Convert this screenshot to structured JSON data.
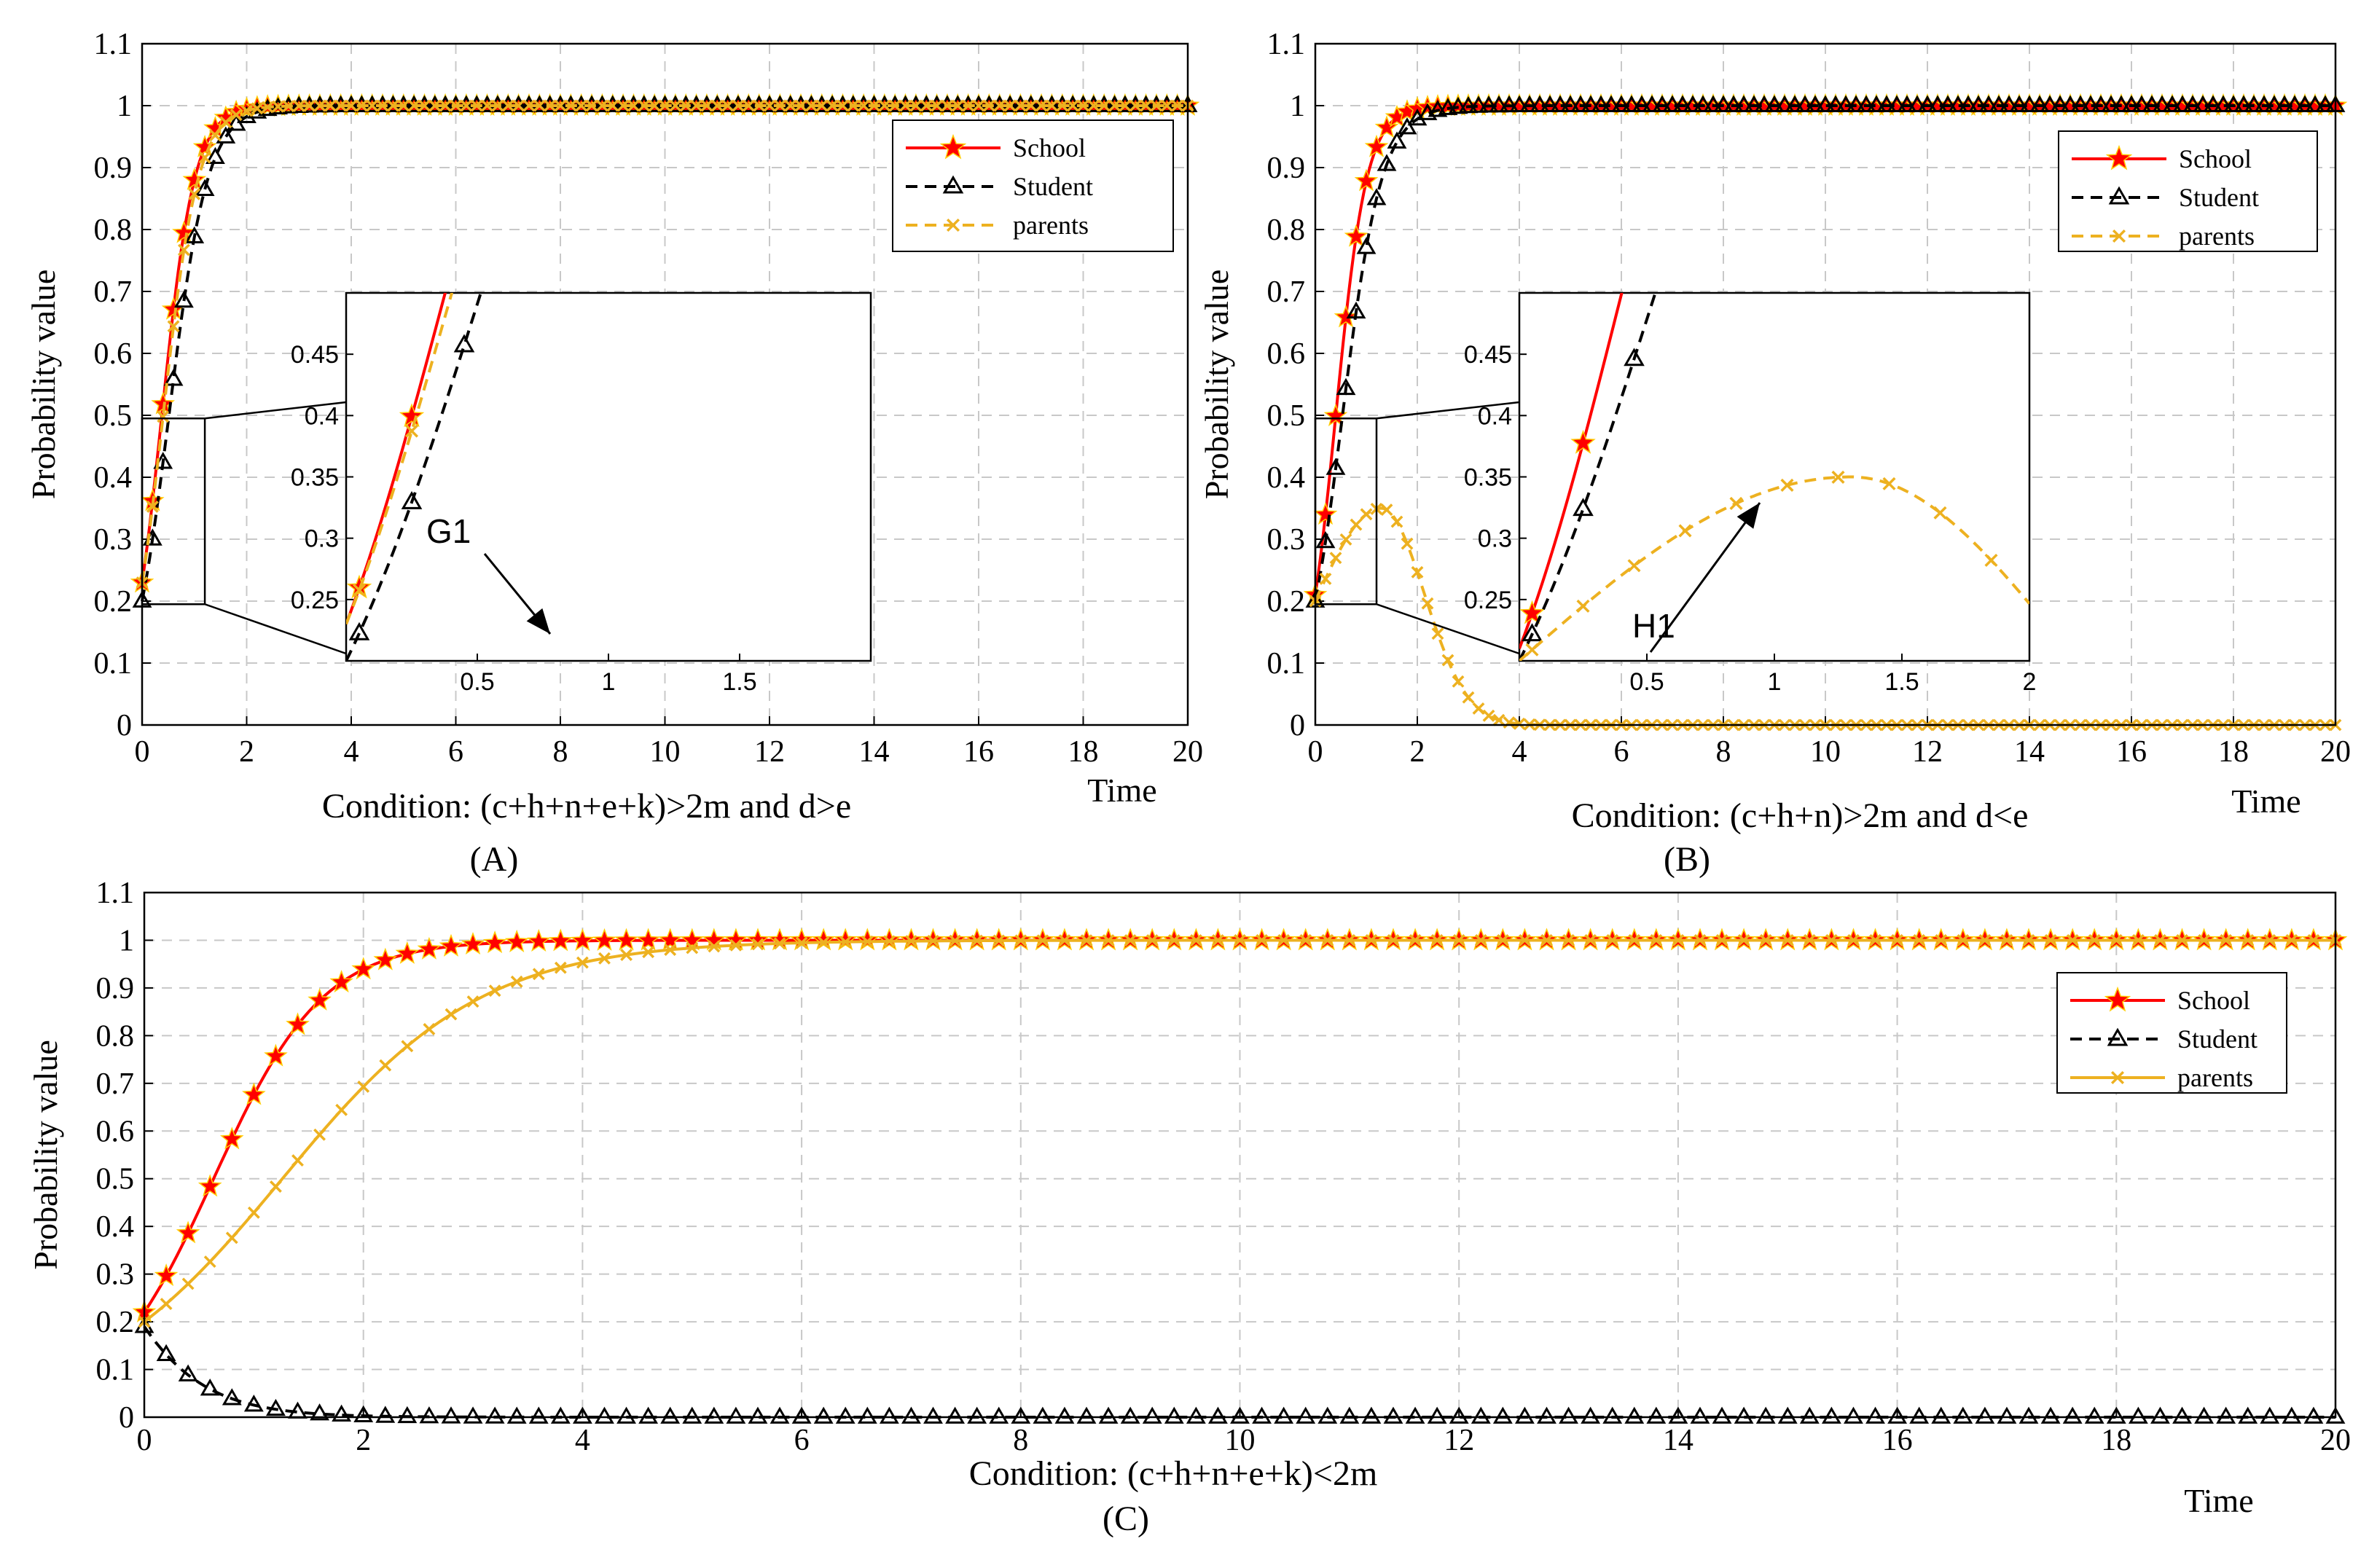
{
  "chart_data": [
    {
      "type": "line",
      "panel_label": "(A)",
      "condition": "Condition: (c+h+n+e+k)>2m and d>e",
      "xlabel": "Time",
      "ylabel": "Probability value",
      "xlim": [
        0,
        20
      ],
      "ylim": [
        0,
        1.1
      ],
      "xticks": [
        "0",
        "2",
        "4",
        "6",
        "8",
        "10",
        "12",
        "14",
        "16",
        "18",
        "20"
      ],
      "yticks": [
        "0",
        "0.1",
        "0.2",
        "0.3",
        "0.4",
        "0.5",
        "0.6",
        "0.7",
        "0.8",
        "0.9",
        "1",
        "1.1"
      ],
      "grid": true,
      "legend_position": "upper-right",
      "series": [
        {
          "name": "School",
          "color": "#ff0000",
          "marker": "star",
          "line": "solid",
          "model": {
            "kind": "logistic",
            "p0": 0.23,
            "k": 3.2
          }
        },
        {
          "name": "Student",
          "color": "#000000",
          "marker": "triangle",
          "line": "dashed",
          "model": {
            "kind": "logistic",
            "p0": 0.2,
            "k": 2.7
          }
        },
        {
          "name": "parents",
          "color": "#edb120",
          "marker": "x",
          "line": "dashed",
          "model": {
            "kind": "logistic",
            "p0": 0.23,
            "k": 3.0
          }
        }
      ],
      "inset": {
        "xlim": [
          0,
          2
        ],
        "ylim": [
          0.2,
          0.5
        ],
        "xticks": [
          "0.5",
          "1",
          "1.5"
        ],
        "yticks": [
          "0.25",
          "0.3",
          "0.35",
          "0.4",
          "0.45"
        ],
        "annotation": "G1"
      }
    },
    {
      "type": "line",
      "panel_label": "(B)",
      "condition": "Condition: (c+h+n)>2m and d<e",
      "xlabel": "Time",
      "ylabel": "Probability value",
      "xlim": [
        0,
        20
      ],
      "ylim": [
        0,
        1.1
      ],
      "xticks": [
        "0",
        "2",
        "4",
        "6",
        "8",
        "10",
        "12",
        "14",
        "16",
        "18",
        "20"
      ],
      "yticks": [
        "0",
        "0.1",
        "0.2",
        "0.3",
        "0.4",
        "0.5",
        "0.6",
        "0.7",
        "0.8",
        "0.9",
        "1",
        "1.1"
      ],
      "grid": true,
      "legend_position": "upper-right",
      "series": [
        {
          "name": "School",
          "color": "#ff0000",
          "marker": "star",
          "line": "solid",
          "model": {
            "kind": "logistic",
            "p0": 0.21,
            "k": 3.3
          }
        },
        {
          "name": "Student",
          "color": "#000000",
          "marker": "triangle",
          "line": "dashed",
          "model": {
            "kind": "logistic",
            "p0": 0.2,
            "k": 2.6
          }
        },
        {
          "name": "parents",
          "color": "#edb120",
          "marker": "x",
          "line": "dashed",
          "model": {
            "kind": "hump",
            "p0": 0.2,
            "peak": 0.35,
            "peak_t": 1.3,
            "decay": 1.4
          }
        }
      ],
      "inset": {
        "xlim": [
          0,
          2
        ],
        "ylim": [
          0.2,
          0.5
        ],
        "xticks": [
          "0.5",
          "1",
          "1.5",
          "2"
        ],
        "yticks": [
          "0.25",
          "0.3",
          "0.35",
          "0.4",
          "0.45"
        ],
        "annotation": "H1"
      }
    },
    {
      "type": "line",
      "panel_label": "(C)",
      "condition": "Condition: (c+h+n+e+k)<2m",
      "xlabel": "Time",
      "ylabel": "Probability value",
      "xlim": [
        0,
        20
      ],
      "ylim": [
        0,
        1.1
      ],
      "xticks": [
        "0",
        "2",
        "4",
        "6",
        "8",
        "10",
        "12",
        "14",
        "16",
        "18",
        "20"
      ],
      "yticks": [
        "0",
        "0.1",
        "0.2",
        "0.3",
        "0.4",
        "0.5",
        "0.6",
        "0.7",
        "0.8",
        "0.9",
        "1",
        "1.1"
      ],
      "grid": true,
      "legend_position": "upper-right",
      "series": [
        {
          "name": "School",
          "color": "#ff0000",
          "marker": "star",
          "line": "solid",
          "model": {
            "kind": "logistic",
            "p0": 0.22,
            "k": 2.0
          }
        },
        {
          "name": "Student",
          "color": "#000000",
          "marker": "triangle",
          "line": "dashed",
          "model": {
            "kind": "logistic",
            "p0": 0.19,
            "k": -2.2
          }
        },
        {
          "name": "parents",
          "color": "#edb120",
          "marker": "x",
          "line": "solid",
          "model": {
            "kind": "logistic",
            "p0": 0.2,
            "k": 1.1
          }
        }
      ]
    }
  ]
}
